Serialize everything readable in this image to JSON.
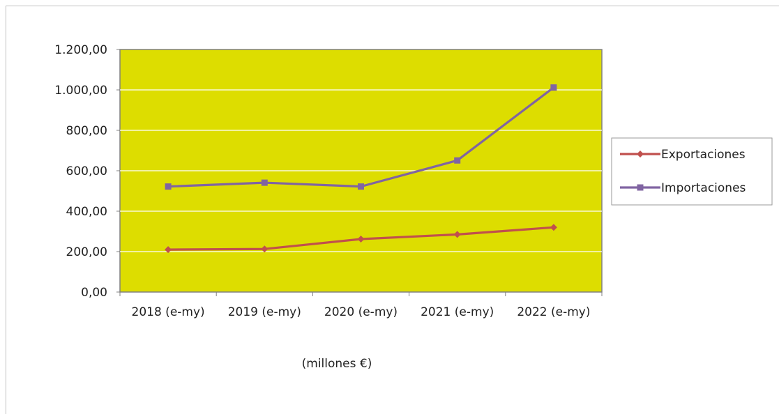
{
  "chart_data": {
    "type": "line",
    "categories": [
      "2018 (e-my)",
      "2019 (e-my)",
      "2020 (e-my)",
      "2021 (e-my)",
      "2022 (e-my)"
    ],
    "series": [
      {
        "name": "Exportaciones",
        "values": [
          210,
          213,
          262,
          285,
          320
        ],
        "color": "#c0504d",
        "marker": "diamond"
      },
      {
        "name": "Importaciones",
        "values": [
          522,
          541,
          522,
          651,
          1012
        ],
        "color": "#8064a2",
        "marker": "square"
      }
    ],
    "yticks": [
      "0,00",
      "200,00",
      "400,00",
      "600,00",
      "800,00",
      "1.000,00",
      "1.200,00"
    ],
    "ylim": [
      0,
      1200
    ],
    "xlabel": "(millones €)",
    "ylabel": "",
    "title": "",
    "grid": true,
    "legend_position": "right",
    "plot_background": "#dddd00",
    "gridline_color": "#ffffff"
  }
}
